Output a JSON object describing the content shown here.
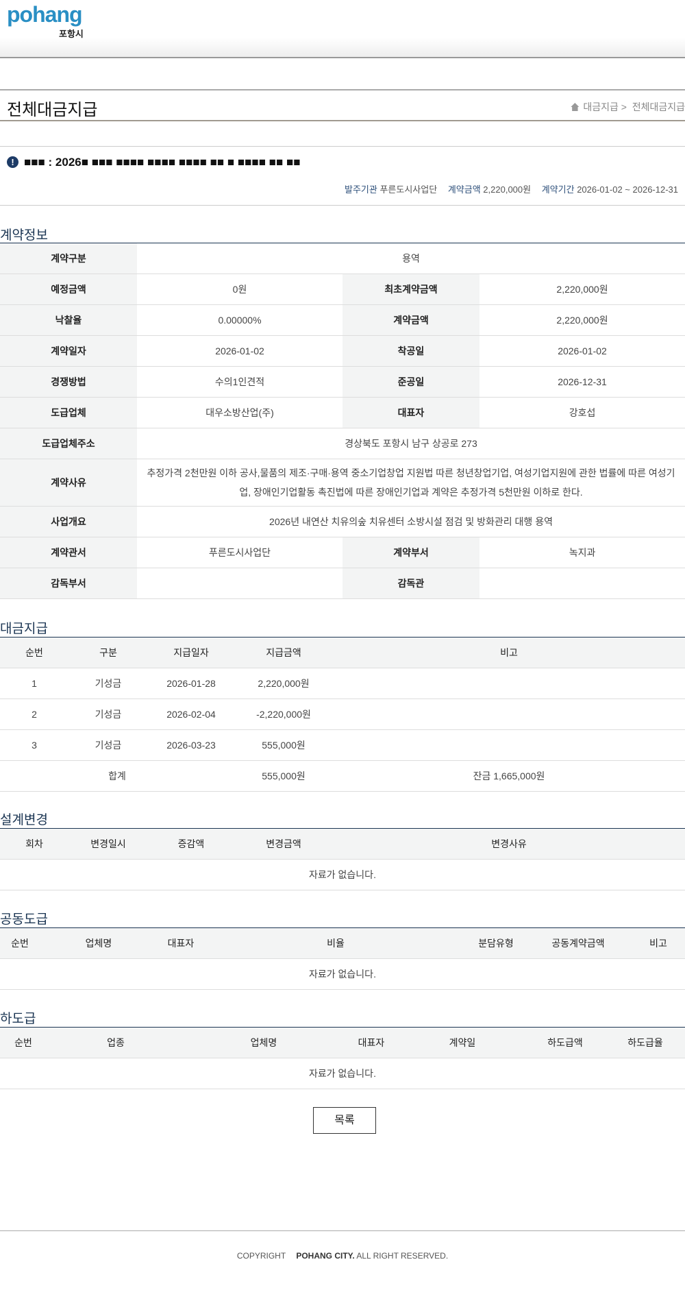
{
  "header": {
    "logo_en": "pohang",
    "logo_ko": "포항시"
  },
  "page": {
    "title": "전체대금지급",
    "breadcrumb": [
      "대금지급 >",
      "전체대금지급"
    ]
  },
  "notice": {
    "title": "■■■ : 2026■ ■■■ ■■■■ ■■■■ ■■■■ ■■ ■ ■■■■ ■■ ■■",
    "meta": [
      {
        "k": "발주기관",
        "v": "푸른도시사업단"
      },
      {
        "k": "계약금액",
        "v": "2,220,000원"
      },
      {
        "k": "계약기간",
        "v": "2026-01-02 ~ 2026-12-31"
      }
    ]
  },
  "contract": {
    "heading": "계약정보",
    "type_l": "계약구분",
    "type_v": "용역",
    "est_l": "예정금액",
    "est_v": "0원",
    "first_l": "최초계약금액",
    "first_v": "2,220,000원",
    "rate_l": "낙찰율",
    "rate_v": "0.00000%",
    "amt_l": "계약금액",
    "amt_v": "2,220,000원",
    "date_l": "계약일자",
    "date_v": "2026-01-02",
    "start_l": "착공일",
    "start_v": "2026-01-02",
    "method_l": "경쟁방법",
    "method_v": "수의1인견적",
    "end_l": "준공일",
    "end_v": "2026-12-31",
    "co_l": "도급업체",
    "co_v": "대우소방산업(주)",
    "ceo_l": "대표자",
    "ceo_v": "강호섭",
    "addr_l": "도급업체주소",
    "addr_v": "경상북도 포항시 남구 상공로 273",
    "reason_l": "계약사유",
    "reason_v": "추정가격 2천만원 이하 공사,물품의 제조·구매·용역 중소기업창업 지원법 따른 청년창업기업, 여성기업지원에 관한 법률에 따른 여성기업, 장애인기업활동 촉진법에 따른 장애인기업과 계약은 추정가격 5천만원 이하로 한다.",
    "summary_l": "사업개요",
    "summary_v": "2026년 내연산 치유의숲 치유센터 소방시설 점검 및 방화관리 대행 용역",
    "office_l": "계약관서",
    "office_v": "푸른도시사업단",
    "dept_l": "계약부서",
    "dept_v": "녹지과",
    "sup_l": "감독부서",
    "sup_v": "",
    "supp_l": "감독관",
    "supp_v": ""
  },
  "payment": {
    "heading": "대금지급",
    "cols": [
      "순번",
      "구분",
      "지급일자",
      "지급금액",
      "비고"
    ],
    "rows": [
      [
        "1",
        "기성금",
        "2026-01-28",
        "2,220,000원",
        ""
      ],
      [
        "2",
        "기성금",
        "2026-02-04",
        "-2,220,000원",
        ""
      ],
      [
        "3",
        "기성금",
        "2026-03-23",
        "555,000원",
        ""
      ]
    ],
    "total_l": "합계",
    "total_v": "555,000원",
    "balance": "잔금 1,665,000원"
  },
  "design": {
    "heading": "설계변경",
    "cols": [
      "회차",
      "변경일시",
      "증감액",
      "변경금액",
      "변경사유"
    ],
    "empty": "자료가 없습니다."
  },
  "joint": {
    "heading": "공동도급",
    "cols": [
      "순번",
      "업체명",
      "대표자",
      "비율",
      "분담유형",
      "공동계약금액",
      "비고"
    ],
    "empty": "자료가 없습니다."
  },
  "sub": {
    "heading": "하도급",
    "cols": [
      "순번",
      "업종",
      "업체명",
      "대표자",
      "계약일",
      "하도급액",
      "하도급율"
    ],
    "empty": "자료가 없습니다."
  },
  "list_button": "목록",
  "footer": {
    "copy": "COPYRIGHT",
    "org": "POHANG CITY.",
    "rights": " ALL RIGHT RESERVED."
  }
}
